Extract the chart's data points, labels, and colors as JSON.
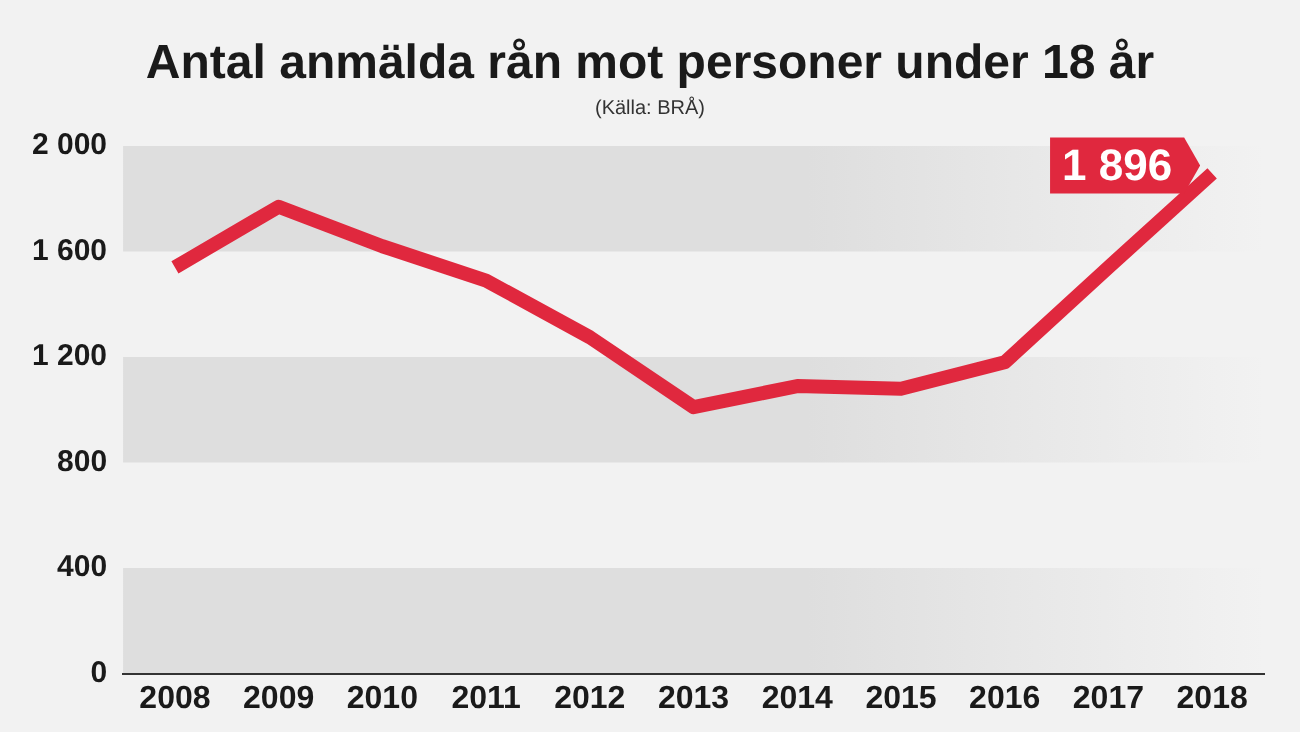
{
  "chart_data": {
    "type": "line",
    "title": "Antal anmälda rån mot personer under 18 år",
    "annotations": [
      "(Källa: BRÅ)"
    ],
    "categories": [
      "2008",
      "2009",
      "2010",
      "2011",
      "2012",
      "2013",
      "2014",
      "2015",
      "2016",
      "2017",
      "2018"
    ],
    "series": [
      {
        "color": "#e0283e",
        "values": [
          1540,
          1770,
          1620,
          1490,
          1275,
          1010,
          1090,
          1080,
          1180,
          1540,
          1896
        ],
        "value_labels": [
          null,
          null,
          null,
          null,
          null,
          null,
          null,
          null,
          null,
          null,
          "1 896"
        ]
      }
    ],
    "ylim": [
      0,
      2000
    ],
    "yticks": [
      {
        "value": 0,
        "label": "0"
      },
      {
        "value": 400,
        "label": "400"
      },
      {
        "value": 800,
        "label": "800"
      },
      {
        "value": 1200,
        "label": "1 200"
      },
      {
        "value": 1600,
        "label": "1 600"
      },
      {
        "value": 2000,
        "label": "2 000"
      }
    ],
    "bands": [
      {
        "axis": "y",
        "from": 0,
        "to": 400,
        "color": "#dedede"
      },
      {
        "axis": "y",
        "from": 800,
        "to": 1200,
        "color": "#dedede"
      },
      {
        "axis": "y",
        "from": 1600,
        "to": 2000,
        "color": "#dedede"
      }
    ],
    "grid": false,
    "legend": false,
    "marker": "none",
    "line_style": "solid"
  }
}
